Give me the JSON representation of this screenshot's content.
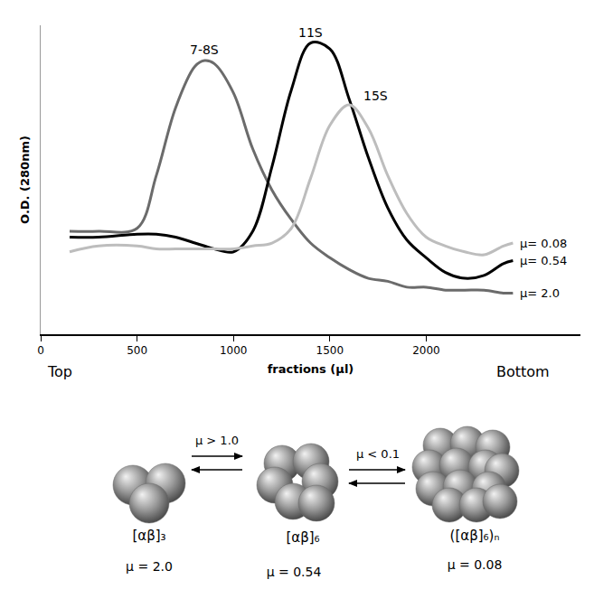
{
  "chart_data": {
    "type": "line",
    "xlabel": "fractions (μl)",
    "ylabel": "O.D. (280nm)",
    "x": [
      150,
      300,
      500,
      600,
      700,
      800,
      850,
      900,
      1000,
      1100,
      1200,
      1300,
      1400,
      1500,
      1600,
      1700,
      1800,
      1900,
      2000,
      2100,
      2200,
      2300,
      2400,
      2450
    ],
    "series": [
      {
        "name": "7-8S",
        "end_label": "μ= 2.0",
        "color": "#6b6b6b",
        "values": [
          0.35,
          0.35,
          0.36,
          0.54,
          0.77,
          0.91,
          0.93,
          0.92,
          0.82,
          0.63,
          0.49,
          0.39,
          0.31,
          0.26,
          0.22,
          0.19,
          0.18,
          0.16,
          0.16,
          0.15,
          0.15,
          0.15,
          0.14,
          0.14
        ]
      },
      {
        "name": "11S",
        "end_label": "μ= 0.54",
        "color": "#000000",
        "values": [
          0.33,
          0.33,
          0.34,
          0.34,
          0.33,
          0.31,
          0.3,
          0.29,
          0.28,
          0.35,
          0.57,
          0.83,
          0.99,
          0.97,
          0.8,
          0.6,
          0.43,
          0.32,
          0.26,
          0.21,
          0.19,
          0.2,
          0.24,
          0.25
        ]
      },
      {
        "name": "15S",
        "end_label": "μ= 0.08",
        "color": "#bdbdbd",
        "values": [
          0.28,
          0.3,
          0.3,
          0.29,
          0.29,
          0.29,
          0.29,
          0.29,
          0.29,
          0.3,
          0.31,
          0.36,
          0.53,
          0.71,
          0.78,
          0.7,
          0.54,
          0.41,
          0.33,
          0.3,
          0.28,
          0.27,
          0.3,
          0.31
        ]
      }
    ],
    "xlim": [
      0,
      2800
    ],
    "xticks": [
      0,
      500,
      1000,
      1500,
      2000
    ],
    "ylim": [
      0,
      1.05
    ],
    "yticks": [],
    "tick_labels": "x",
    "grid": false,
    "annotations": [
      {
        "text": "Top",
        "x": 100
      },
      {
        "text": "Bottom",
        "x": 2500
      }
    ]
  },
  "diagram": {
    "species": [
      {
        "label": "[αβ]₃",
        "mu": "μ = 2.0"
      },
      {
        "label": "[αβ]₆",
        "mu": "μ = 0.54"
      },
      {
        "label": "([αβ]₆)ₙ",
        "mu": "μ = 0.08"
      }
    ],
    "equilibria": [
      {
        "label": "μ > 1.0"
      },
      {
        "label": "μ < 0.1"
      }
    ]
  }
}
